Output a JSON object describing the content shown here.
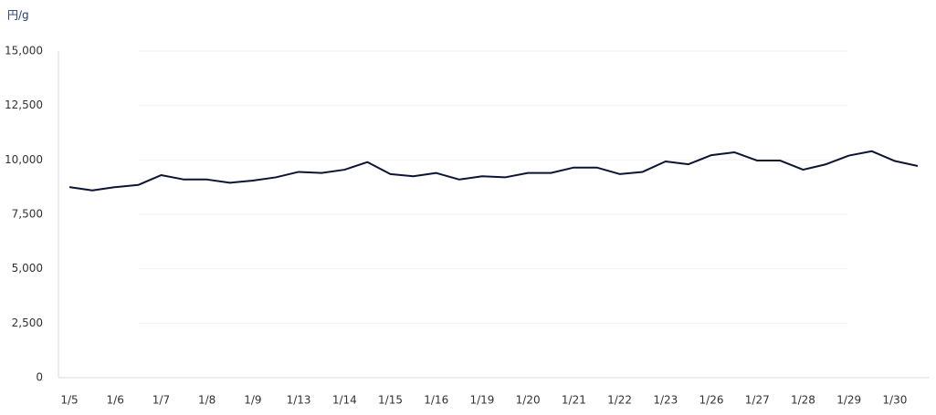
{
  "chart_data": {
    "type": "line",
    "y_label": "円/g",
    "categories": [
      "1/5",
      null,
      "1/6",
      null,
      "1/7",
      null,
      "1/8",
      null,
      "1/9",
      null,
      "1/13",
      null,
      "1/14",
      null,
      "1/15",
      null,
      "1/16",
      null,
      "1/19",
      null,
      "1/20",
      null,
      "1/21",
      null,
      "1/22",
      null,
      "1/23",
      null,
      "1/26",
      null,
      "1/27",
      null,
      "1/28",
      null,
      "1/29",
      null,
      "1/30",
      null
    ],
    "values": [
      8750,
      8600,
      8750,
      8850,
      9300,
      9100,
      9100,
      8950,
      9050,
      9200,
      9450,
      9400,
      9550,
      9900,
      9350,
      9250,
      9400,
      9100,
      9250,
      9200,
      9400,
      9400,
      9650,
      9650,
      9350,
      9450,
      9930,
      9800,
      10220,
      10350,
      9970,
      9970,
      9550,
      9800,
      10200,
      10400,
      9950,
      9720
    ],
    "color": "#0d1433",
    "ylim": [
      0,
      15000
    ],
    "yticks": [
      0,
      {
        "value": 2500,
        "label": "2,500"
      },
      {
        "value": 5000,
        "label": "5,000"
      },
      {
        "value": 7500,
        "label": "7,500"
      },
      {
        "value": 10000,
        "label": "10,000"
      },
      {
        "value": 12500,
        "label": "12,500"
      },
      {
        "value": 15000,
        "label": "15,000"
      }
    ],
    "grid": true
  }
}
